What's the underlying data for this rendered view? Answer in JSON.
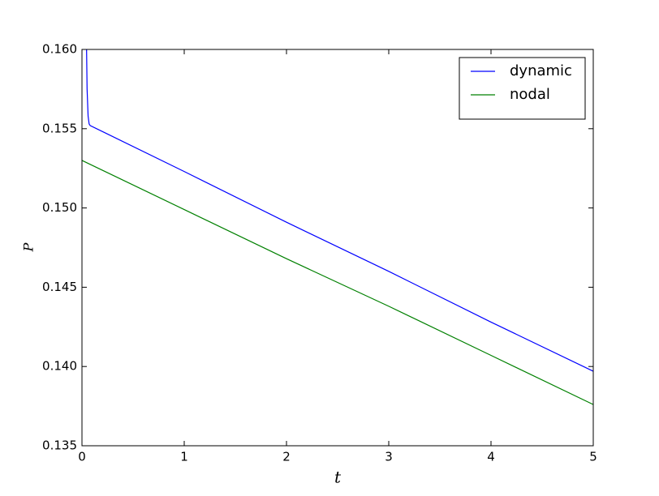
{
  "chart_data": {
    "type": "line",
    "xlabel": "t",
    "ylabel": "P",
    "series": [
      {
        "name": "dynamic",
        "color": "#0000ff",
        "x": [
          0.045,
          0.05,
          0.06,
          0.07,
          0.08,
          1,
          2,
          3,
          4,
          5
        ],
        "values": [
          0.16,
          0.1575,
          0.1558,
          0.1553,
          0.1552,
          0.1523,
          0.1491,
          0.146,
          0.1428,
          0.1397
        ]
      },
      {
        "name": "nodal",
        "color": "#008000",
        "x": [
          0,
          1,
          2,
          3,
          4,
          5
        ],
        "values": [
          0.153,
          0.1499,
          0.1468,
          0.1438,
          0.1407,
          0.1376
        ]
      }
    ],
    "xlim": [
      0,
      5
    ],
    "xticks": [
      0,
      1,
      2,
      3,
      4,
      5
    ],
    "ylim": [
      0.135,
      0.16
    ],
    "yticks": [
      {
        "value": 0.135,
        "label": "0.135"
      },
      {
        "value": 0.14,
        "label": "0.140"
      },
      {
        "value": 0.145,
        "label": "0.145"
      },
      {
        "value": 0.15,
        "label": "0.150"
      },
      {
        "value": 0.155,
        "label": "0.155"
      },
      {
        "value": 0.16,
        "label": "0.160"
      }
    ],
    "legend": "upper right",
    "grid": false
  }
}
